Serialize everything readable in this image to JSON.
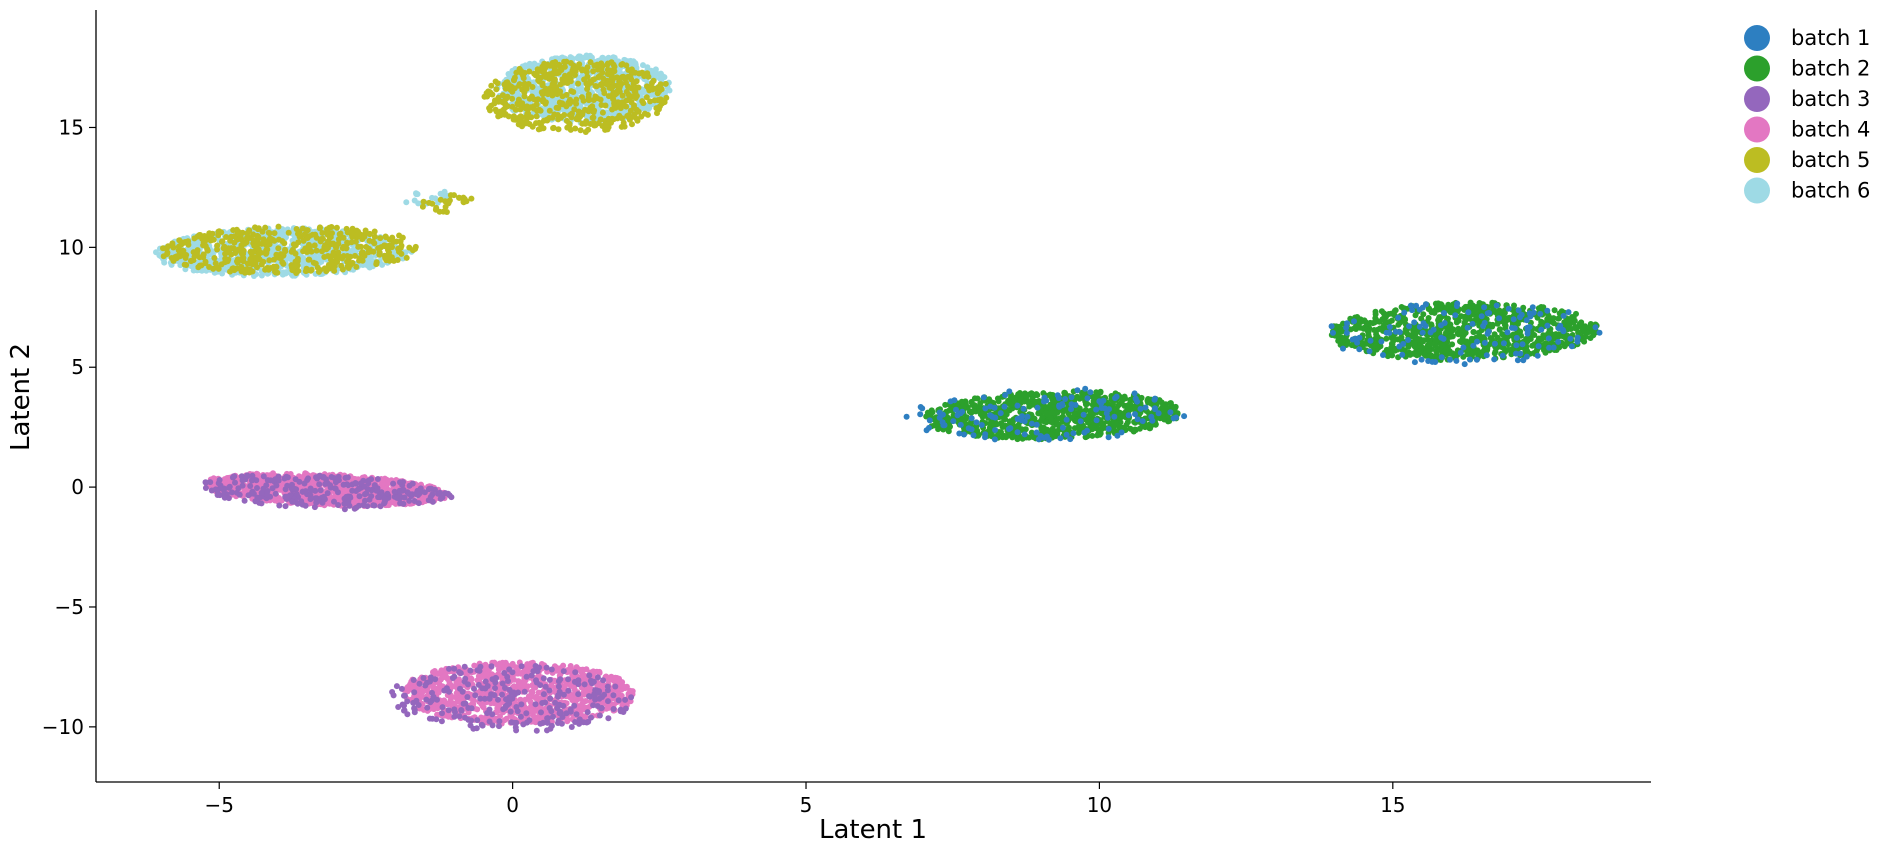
{
  "chart_data": {
    "type": "scatter",
    "title": "",
    "xlabel": "Latent 1",
    "ylabel": "Latent 2",
    "xlim": [
      -7.1,
      19.4
    ],
    "ylim": [
      -12.3,
      19.9
    ],
    "xticks": [
      -5,
      0,
      5,
      10,
      15
    ],
    "yticks": [
      -10,
      -5,
      0,
      5,
      10,
      15
    ],
    "xtick_labels": [
      "−5",
      "0",
      "5",
      "10",
      "15"
    ],
    "ytick_labels": [
      "−10",
      "−5",
      "0",
      "5",
      "10",
      "15"
    ],
    "grid": false,
    "legend_position": "outside top-right",
    "spines": [
      "left",
      "bottom"
    ],
    "point_size_data_note": "small filled circles",
    "series": [
      {
        "name": "batch 1",
        "color": "#2d7fc1",
        "clusters": [
          {
            "cx": 9.1,
            "cy": 3.0,
            "rx": 2.4,
            "ry": 1.1,
            "tilt": 0.08,
            "count": 130
          },
          {
            "cx": 16.2,
            "cy": 6.4,
            "rx": 2.4,
            "ry": 1.3,
            "tilt": 0.05,
            "count": 130
          }
        ]
      },
      {
        "name": "batch 2",
        "color": "#2ca02c",
        "clusters": [
          {
            "cx": 9.2,
            "cy": 3.0,
            "rx": 2.2,
            "ry": 1.0,
            "tilt": 0.08,
            "count": 850
          },
          {
            "cx": 16.2,
            "cy": 6.5,
            "rx": 2.3,
            "ry": 1.2,
            "tilt": 0.05,
            "count": 850
          }
        ]
      },
      {
        "name": "batch 3",
        "color": "#9467bd",
        "clusters": [
          {
            "cx": -3.2,
            "cy": -0.2,
            "rx": 2.2,
            "ry": 0.7,
            "tilt": -0.12,
            "count": 260
          },
          {
            "cx": 0.0,
            "cy": -8.8,
            "rx": 2.1,
            "ry": 1.4,
            "tilt": -0.05,
            "count": 260
          }
        ]
      },
      {
        "name": "batch 4",
        "color": "#e377c2",
        "clusters": [
          {
            "cx": -3.2,
            "cy": -0.1,
            "rx": 2.1,
            "ry": 0.65,
            "tilt": -0.12,
            "count": 900
          },
          {
            "cx": 0.1,
            "cy": -8.6,
            "rx": 2.0,
            "ry": 1.3,
            "tilt": -0.05,
            "count": 900
          }
        ]
      },
      {
        "name": "batch 5",
        "color": "#bcbd22",
        "clusters": [
          {
            "cx": -3.8,
            "cy": 9.9,
            "rx": 2.2,
            "ry": 1.0,
            "tilt": 0.05,
            "count": 450
          },
          {
            "cx": 1.1,
            "cy": 16.3,
            "rx": 1.6,
            "ry": 1.5,
            "tilt": 0.35,
            "count": 500
          },
          {
            "cx": -1.2,
            "cy": 11.8,
            "rx": 0.6,
            "ry": 0.35,
            "tilt": 0.5,
            "count": 25
          }
        ]
      },
      {
        "name": "batch 6",
        "color": "#9edae5",
        "clusters": [
          {
            "cx": -3.9,
            "cy": 9.8,
            "rx": 2.2,
            "ry": 1.0,
            "tilt": 0.05,
            "count": 750
          },
          {
            "cx": 1.2,
            "cy": 16.6,
            "rx": 1.5,
            "ry": 1.4,
            "tilt": 0.35,
            "count": 800
          },
          {
            "cx": -1.5,
            "cy": 12.0,
            "rx": 0.5,
            "ry": 0.3,
            "tilt": 0.5,
            "count": 20
          }
        ]
      }
    ]
  }
}
